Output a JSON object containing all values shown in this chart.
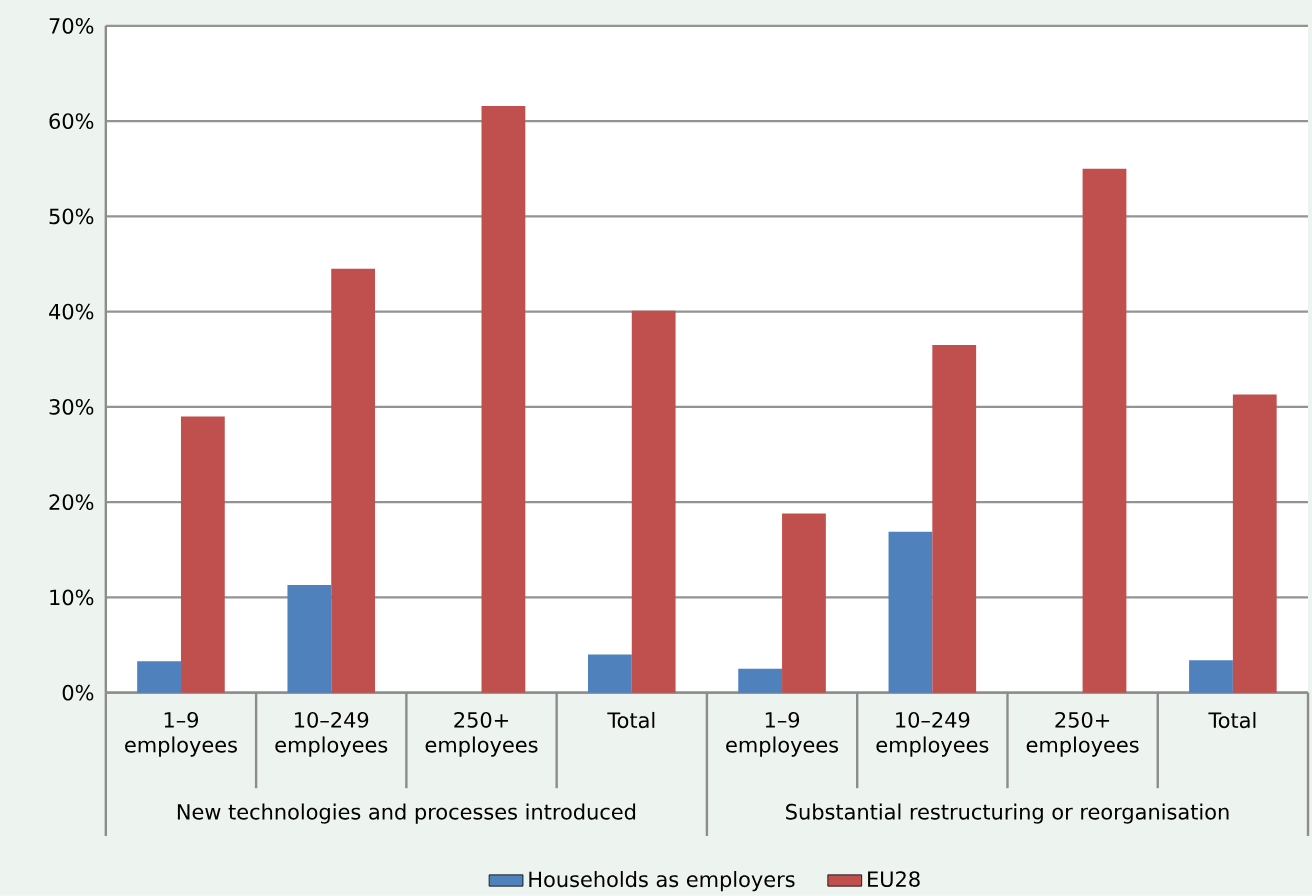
{
  "chart_data": {
    "type": "bar",
    "categories": [
      "1–9 employees",
      "10–249 employees",
      "250+ employees",
      "Total",
      "1–9 employees",
      "10–249 employees",
      "250+ employees",
      "Total"
    ],
    "series": [
      {
        "name": "Households as employers",
        "color": "#4f81bd",
        "values": [
          3.3,
          11.3,
          null,
          4.0,
          2.5,
          16.9,
          null,
          3.4
        ]
      },
      {
        "name": "EU28",
        "color": "#c0504d",
        "values": [
          29.0,
          44.5,
          61.6,
          40.1,
          18.8,
          36.5,
          55.0,
          31.3
        ]
      }
    ],
    "annotations": [
      "New technologies and processes introduced",
      "Substantial restructuring or reorganisation"
    ],
    "ylim": [
      0,
      70
    ],
    "yticks": [
      {
        "value": 0,
        "label": "0%"
      },
      {
        "value": 10,
        "label": "10%"
      },
      {
        "value": 20,
        "label": "20%"
      },
      {
        "value": 30,
        "label": "30%"
      },
      {
        "value": 40,
        "label": "40%"
      },
      {
        "value": 50,
        "label": "50%"
      },
      {
        "value": 60,
        "label": "60%"
      },
      {
        "value": 70,
        "label": "70%"
      }
    ],
    "grid": "y",
    "legend": "bottom"
  }
}
